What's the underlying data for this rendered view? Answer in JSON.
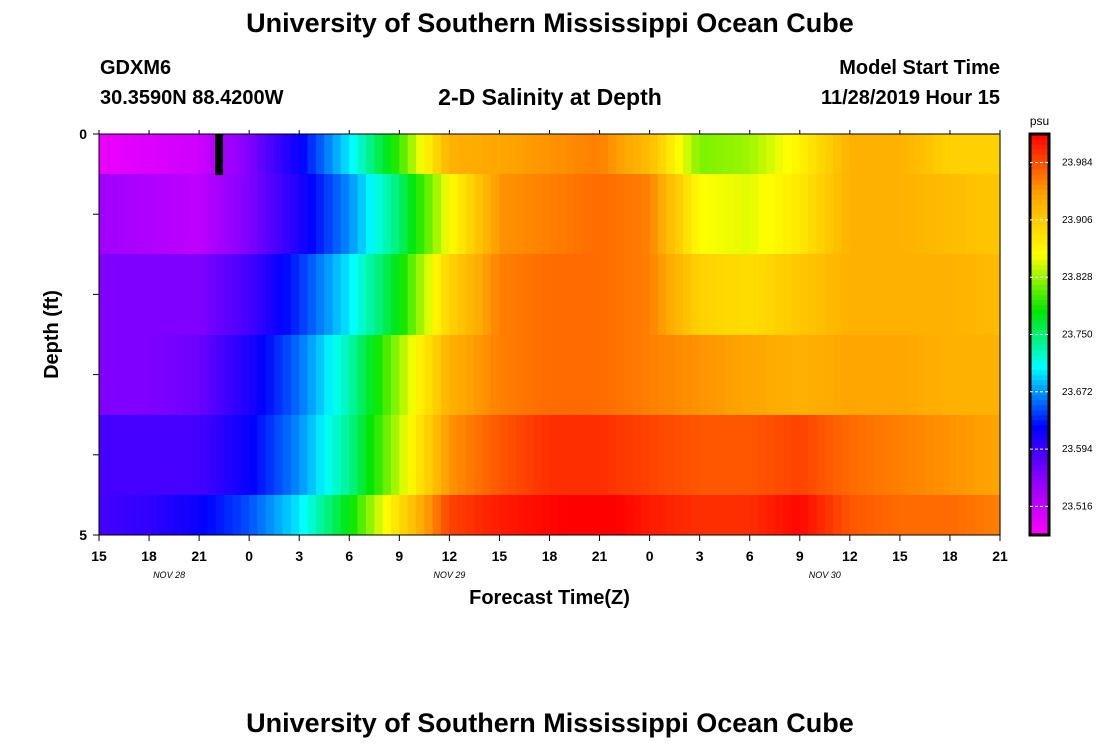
{
  "header": {
    "title": "University of Southern Mississippi Ocean Cube",
    "station": "GDXM6",
    "coords": "30.3590N 88.4200W",
    "chart_title": "2-D Salinity at Depth",
    "model_label": "Model Start Time",
    "model_time": "11/28/2019 Hour 15"
  },
  "footer": {
    "title": "University of Southern Mississippi Ocean Cube"
  },
  "chart_data": {
    "type": "heatmap",
    "title": "2-D Salinity at Depth",
    "xlabel": "Forecast Time(Z)",
    "ylabel": "Depth (ft)",
    "x_ticks": [
      "15",
      "18",
      "21",
      "0",
      "3",
      "6",
      "9",
      "12",
      "15",
      "18",
      "21",
      "0",
      "3",
      "6",
      "9",
      "12",
      "15",
      "18",
      "21"
    ],
    "date_labels": [
      {
        "label": "NOV 28",
        "tick_index": 1.4
      },
      {
        "label": "NOV 29",
        "tick_index": 7
      },
      {
        "label": "NOV 30",
        "tick_index": 14.5
      }
    ],
    "y_ticks": [
      "0",
      "5"
    ],
    "ylim": [
      0,
      5
    ],
    "colorbar": {
      "unit": "psu",
      "min": 23.477,
      "max": 24.023,
      "ticks": [
        "23.516",
        "23.594",
        "23.672",
        "23.750",
        "23.828",
        "23.906",
        "23.984"
      ]
    },
    "hours": [
      0,
      3,
      6,
      9,
      12,
      15,
      18,
      21,
      24,
      27,
      30,
      33,
      36,
      39,
      42,
      45,
      48,
      51,
      54
    ],
    "rows": [
      {
        "depth_range": [
          0,
          0.5
        ],
        "values": [
          23.49,
          23.5,
          23.51,
          23.56,
          23.62,
          23.7,
          23.8,
          23.93,
          23.94,
          23.95,
          23.96,
          23.92,
          23.82,
          23.83,
          23.87,
          23.93,
          23.93,
          23.9,
          23.9
        ]
      },
      {
        "depth_range": [
          0.5,
          1.5
        ],
        "values": [
          23.54,
          23.53,
          23.52,
          23.56,
          23.61,
          23.67,
          23.75,
          23.86,
          23.95,
          23.96,
          23.97,
          23.96,
          23.86,
          23.85,
          23.88,
          23.93,
          23.93,
          23.92,
          23.91
        ]
      },
      {
        "depth_range": [
          1.5,
          2.5
        ],
        "values": [
          23.56,
          23.56,
          23.56,
          23.59,
          23.64,
          23.7,
          23.78,
          23.9,
          23.96,
          23.97,
          23.97,
          23.96,
          23.9,
          23.89,
          23.91,
          23.93,
          23.93,
          23.93,
          23.92
        ]
      },
      {
        "depth_range": [
          2.5,
          3.5
        ],
        "values": [
          23.56,
          23.56,
          23.57,
          23.61,
          23.66,
          23.73,
          23.83,
          23.93,
          23.96,
          23.97,
          23.97,
          23.96,
          23.95,
          23.94,
          23.93,
          23.94,
          23.94,
          23.93,
          23.93
        ]
      },
      {
        "depth_range": [
          3.5,
          4.5
        ],
        "values": [
          23.59,
          23.59,
          23.59,
          23.62,
          23.67,
          23.74,
          23.84,
          23.95,
          23.98,
          24.0,
          24.0,
          23.99,
          23.98,
          23.98,
          23.99,
          23.97,
          23.96,
          23.95,
          23.94
        ]
      },
      {
        "depth_range": [
          4.5,
          5
        ],
        "values": [
          23.59,
          23.6,
          23.62,
          23.65,
          23.7,
          23.78,
          23.89,
          23.99,
          24.01,
          24.02,
          24.03,
          24.01,
          24.0,
          24.0,
          24.02,
          23.98,
          23.97,
          23.97,
          23.96
        ]
      }
    ],
    "annotation": {
      "label": "marker",
      "hour": 7.2,
      "depth_range": [
        0,
        0.5
      ]
    }
  }
}
